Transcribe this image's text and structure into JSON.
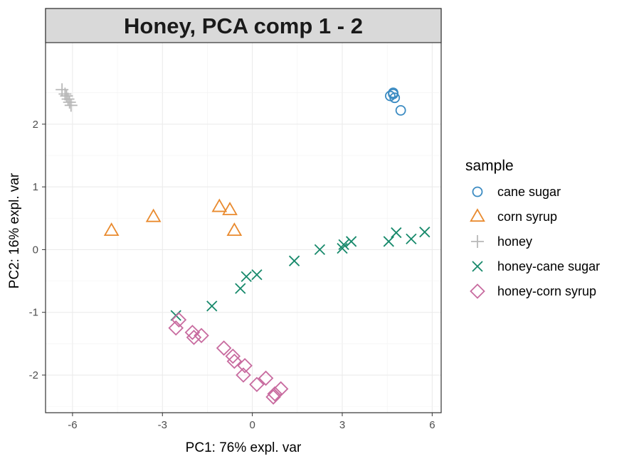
{
  "chart_data": {
    "type": "scatter",
    "title": "Honey, PCA comp 1 - 2",
    "xlabel": "PC1: 76% expl. var",
    "ylabel": "PC2: 16% expl. var",
    "xlim": [
      -6.9,
      6.3
    ],
    "ylim": [
      -2.6,
      3.3
    ],
    "xticks": [
      -6,
      -3,
      0,
      3,
      6
    ],
    "xtick_labels": [
      "-6",
      "-3",
      "0",
      "3",
      "6"
    ],
    "yticks": [
      -2,
      -1,
      0,
      1,
      2
    ],
    "ytick_labels": [
      "-2",
      "-1",
      "0",
      "1",
      "2"
    ],
    "grid": true,
    "legend": {
      "title": "sample",
      "position": "right"
    },
    "series": [
      {
        "name": "cane sugar",
        "marker": "circle",
        "color": "#3b8bc2",
        "points": [
          [
            4.6,
            2.45
          ],
          [
            4.7,
            2.48
          ],
          [
            4.75,
            2.42
          ],
          [
            4.7,
            2.5
          ],
          [
            4.95,
            2.22
          ]
        ]
      },
      {
        "name": "corn syrup",
        "marker": "triangle",
        "color": "#e98a2e",
        "points": [
          [
            -4.7,
            0.3
          ],
          [
            -3.3,
            0.52
          ],
          [
            -1.1,
            0.68
          ],
          [
            -0.75,
            0.63
          ],
          [
            -0.6,
            0.3
          ]
        ]
      },
      {
        "name": "honey",
        "marker": "plus",
        "color": "#b8b8b8",
        "points": [
          [
            -6.35,
            2.55
          ],
          [
            -6.25,
            2.48
          ],
          [
            -6.15,
            2.4
          ],
          [
            -6.1,
            2.35
          ],
          [
            -6.05,
            2.3
          ],
          [
            -6.2,
            2.45
          ]
        ]
      },
      {
        "name": "honey-cane sugar",
        "marker": "cross",
        "color": "#17896b",
        "points": [
          [
            -2.55,
            -1.05
          ],
          [
            -1.35,
            -0.9
          ],
          [
            -0.4,
            -0.62
          ],
          [
            -0.2,
            -0.43
          ],
          [
            0.15,
            -0.4
          ],
          [
            1.4,
            -0.18
          ],
          [
            2.25,
            0.0
          ],
          [
            3.0,
            0.02
          ],
          [
            3.05,
            0.08
          ],
          [
            3.3,
            0.13
          ],
          [
            4.55,
            0.13
          ],
          [
            4.8,
            0.27
          ],
          [
            5.3,
            0.17
          ],
          [
            5.75,
            0.28
          ]
        ]
      },
      {
        "name": "honey-corn syrup",
        "marker": "diamond",
        "color": "#c86b9f",
        "points": [
          [
            -2.45,
            -1.12
          ],
          [
            -2.55,
            -1.25
          ],
          [
            -2.0,
            -1.32
          ],
          [
            -1.95,
            -1.4
          ],
          [
            -1.7,
            -1.37
          ],
          [
            -0.95,
            -1.57
          ],
          [
            -0.65,
            -1.7
          ],
          [
            -0.6,
            -1.78
          ],
          [
            -0.25,
            -1.85
          ],
          [
            -0.3,
            -2.0
          ],
          [
            0.15,
            -2.15
          ],
          [
            0.45,
            -2.05
          ],
          [
            0.75,
            -2.3
          ],
          [
            0.7,
            -2.35
          ],
          [
            0.95,
            -2.22
          ]
        ]
      }
    ]
  }
}
